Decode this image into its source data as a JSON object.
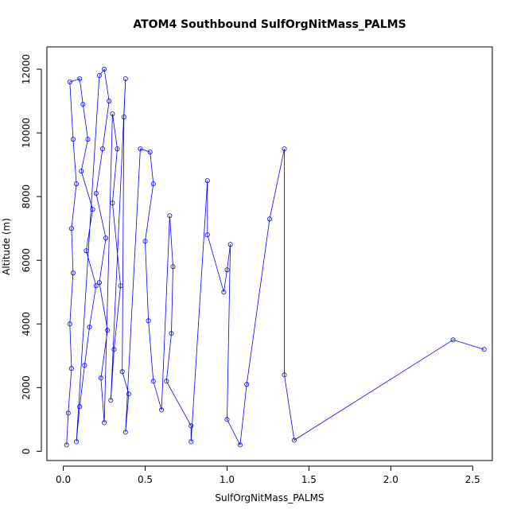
{
  "chart_data": {
    "type": "scatter",
    "title": "ATOM4 Southbound SulfOrgNitMass_PALMS",
    "xlabel": "SulfOrgNitMass_PALMS",
    "ylabel": "Altitude (m)",
    "xlim": [
      -0.1,
      2.62
    ],
    "ylim": [
      -290,
      12700
    ],
    "x_ticks": [
      0.0,
      0.5,
      1.0,
      1.5,
      2.0,
      2.5
    ],
    "x_tick_labels": [
      "0.0",
      "0.5",
      "1.0",
      "1.5",
      "2.0",
      "2.5"
    ],
    "y_ticks": [
      0,
      2000,
      4000,
      6000,
      8000,
      10000,
      12000
    ],
    "y_tick_labels": [
      "0",
      "2000",
      "4000",
      "6000",
      "8000",
      "10000",
      "12000"
    ],
    "grid": false,
    "marker": "open-circle",
    "series_color": "#0000ff",
    "series": [
      {
        "values_note": "",
        "points": [
          [
            0.02,
            200
          ],
          [
            0.03,
            1200
          ],
          [
            0.05,
            2600
          ],
          [
            0.04,
            4000
          ],
          [
            0.06,
            5600
          ],
          [
            0.05,
            7000
          ],
          [
            0.08,
            8400
          ],
          [
            0.06,
            9800
          ],
          [
            0.04,
            11600
          ],
          [
            0.1,
            11700
          ],
          [
            0.12,
            10900
          ],
          [
            0.15,
            9800
          ],
          [
            0.11,
            8800
          ],
          [
            0.18,
            7600
          ],
          [
            0.14,
            6300
          ],
          [
            0.2,
            5200
          ],
          [
            0.16,
            3900
          ],
          [
            0.13,
            2700
          ],
          [
            0.1,
            1400
          ],
          [
            0.08,
            300
          ],
          [
            0.22,
            11800
          ],
          [
            0.25,
            12000
          ],
          [
            0.28,
            11000
          ],
          [
            0.24,
            9500
          ],
          [
            0.2,
            8100
          ],
          [
            0.26,
            6700
          ],
          [
            0.22,
            5300
          ],
          [
            0.27,
            3800
          ],
          [
            0.23,
            2300
          ],
          [
            0.25,
            900
          ],
          [
            0.3,
            10600
          ],
          [
            0.33,
            9500
          ],
          [
            0.3,
            7800
          ],
          [
            0.35,
            5200
          ],
          [
            0.31,
            3200
          ],
          [
            0.29,
            1600
          ],
          [
            0.38,
            11700
          ],
          [
            0.37,
            10500
          ],
          [
            0.36,
            2500
          ],
          [
            0.4,
            1800
          ],
          [
            0.38,
            600
          ],
          [
            0.47,
            9500
          ],
          [
            0.53,
            9400
          ],
          [
            0.55,
            8400
          ],
          [
            0.5,
            6600
          ],
          [
            0.52,
            4100
          ],
          [
            0.55,
            2200
          ],
          [
            0.6,
            1300
          ],
          [
            0.65,
            7400
          ],
          [
            0.67,
            5800
          ],
          [
            0.66,
            3700
          ],
          [
            0.63,
            2200
          ],
          [
            0.78,
            800
          ],
          [
            0.78,
            300
          ],
          [
            0.88,
            8500
          ],
          [
            0.88,
            6800
          ],
          [
            0.98,
            5000
          ],
          [
            1.0,
            5700
          ],
          [
            1.02,
            6500
          ],
          [
            1.0,
            1000
          ],
          [
            1.08,
            200
          ],
          [
            1.12,
            2100
          ],
          [
            1.26,
            7300
          ],
          [
            1.35,
            9500
          ],
          [
            1.35,
            2400
          ],
          [
            1.41,
            350
          ],
          [
            2.38,
            3500
          ],
          [
            2.57,
            3200
          ]
        ]
      }
    ]
  }
}
